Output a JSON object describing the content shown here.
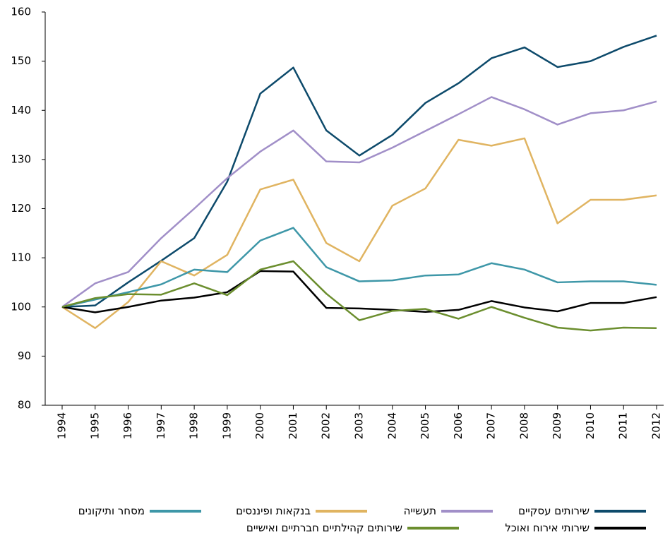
{
  "chart_data": {
    "type": "line",
    "categories": [
      "1994",
      "1995",
      "1996",
      "1997",
      "1998",
      "1999",
      "2000",
      "2001",
      "2002",
      "2003",
      "2004",
      "2005",
      "2006",
      "2007",
      "2008",
      "2009",
      "2010",
      "2011",
      "2012"
    ],
    "ylim": [
      80,
      160
    ],
    "yticks": [
      80,
      90,
      100,
      110,
      120,
      130,
      140,
      150,
      160
    ],
    "series": [
      {
        "name": "שירותים עסקיים",
        "color": "#0d4a6b",
        "values": [
          100,
          100.3,
          105,
          109.4,
          114,
          125.5,
          143.4,
          148.7,
          135.9,
          130.8,
          135,
          141.5,
          145.5,
          150.6,
          152.8,
          148.8,
          150,
          152.9,
          155.2
        ]
      },
      {
        "name": "תעשייה",
        "color": "#a18fc8",
        "values": [
          100,
          104.8,
          107.1,
          114,
          120,
          126.2,
          131.6,
          135.9,
          129.6,
          129.4,
          132.4,
          135.8,
          139.2,
          142.7,
          140.2,
          137.1,
          139.4,
          140,
          141.8
        ]
      },
      {
        "name": "בנקאות ופיננסים",
        "color": "#e0b461",
        "values": [
          100,
          95.7,
          101,
          109.3,
          106.4,
          110.6,
          123.9,
          125.9,
          113,
          109.3,
          120.6,
          124.1,
          134,
          132.8,
          134.3,
          117,
          121.8,
          121.8,
          122.7
        ]
      },
      {
        "name": "מסחר ותיקונים",
        "color": "#3e97a8",
        "values": [
          100,
          101.5,
          103,
          104.6,
          107.6,
          107.1,
          113.5,
          116.1,
          108.1,
          105.2,
          105.4,
          106.4,
          106.6,
          108.9,
          107.6,
          105,
          105.2,
          105.2,
          104.5
        ]
      },
      {
        "name": "שירותי אירוח ואוכל",
        "color": "#000000",
        "values": [
          100,
          98.9,
          100,
          101.3,
          101.9,
          103,
          107.3,
          107.2,
          99.8,
          99.7,
          99.4,
          99,
          99.4,
          101.2,
          99.9,
          99.1,
          100.8,
          100.8,
          102
        ]
      },
      {
        "name": "שירותים קהילתיים חברתיים ואישיים",
        "color": "#6b8e2e",
        "values": [
          100,
          101.8,
          102.6,
          102.5,
          104.8,
          102.4,
          107.6,
          109.3,
          102.7,
          97.3,
          99.2,
          99.6,
          97.6,
          100,
          97.8,
          95.8,
          95.2,
          95.8,
          95.7
        ]
      }
    ]
  }
}
